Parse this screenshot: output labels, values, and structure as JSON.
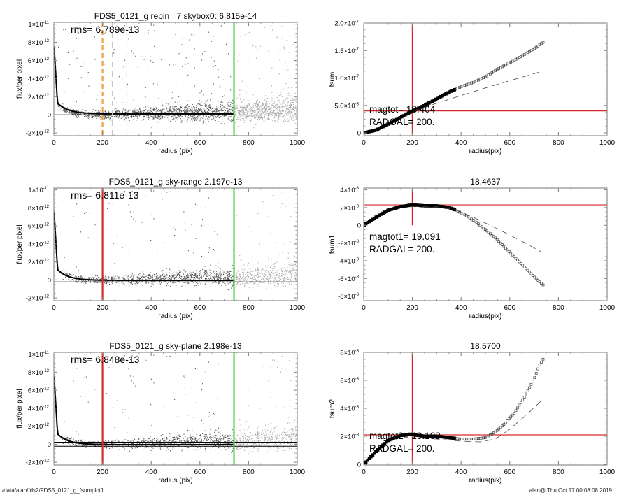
{
  "footer": {
    "path": "/data/alan/fds2/FDS5_0121_g_fsumplot1",
    "stamp": "alan@  Thu Oct 17 00:08:08 2019"
  },
  "colors": {
    "red": "#d62a2a",
    "green": "#4fd24f",
    "orange": "#f0a040",
    "dark_points": "#555555",
    "light_points": "#a8a8a8"
  },
  "chart_data": [
    {
      "id": "profile0",
      "type": "scatter",
      "title": "FDS5_0121_g rebin= 7    skybox0:  6.815e-14",
      "annotation": "rms= 6.789e-13",
      "xlabel": "radius (pix)",
      "ylabel": "flux/per pixel",
      "xlim": [
        0,
        1000
      ],
      "ylim": [
        -2.3e-12,
        1.02e-11
      ],
      "xticks": [
        0,
        200,
        400,
        600,
        800,
        1000
      ],
      "xticklabels": [
        "0",
        "200",
        "400",
        "600",
        "800",
        "1000"
      ],
      "yticks": [
        -2e-12,
        0,
        2e-12,
        4e-12,
        6e-12,
        8e-12,
        1e-11
      ],
      "yticklabels": [
        [
          "-2×10",
          "-12"
        ],
        [
          "0",
          ""
        ],
        [
          "2×10",
          "-12"
        ],
        [
          "4×10",
          "-12"
        ],
        [
          "6×10",
          "-12"
        ],
        [
          "8×10",
          "-12"
        ],
        [
          "1×10",
          "-11"
        ]
      ],
      "vlines": [
        {
          "x": 200,
          "color": "orange",
          "style": "dashed"
        },
        {
          "x": 240,
          "color": "lightgray",
          "style": "dashed"
        },
        {
          "x": 300,
          "color": "lightgray",
          "style": "dashed"
        },
        {
          "x": 740,
          "color": "green",
          "style": "solid"
        }
      ],
      "hlines": [
        {
          "y": 0,
          "color": "black"
        }
      ],
      "profile_end": 740,
      "skyband": [
        0,
        0
      ]
    },
    {
      "id": "fsum0",
      "type": "line",
      "title": "",
      "xlabel": "radius(pix)",
      "ylabel": "fsum",
      "xlim": [
        0,
        1000
      ],
      "ylim": [
        -5e-09,
        2e-07
      ],
      "xticks": [
        0,
        200,
        400,
        600,
        800,
        1000
      ],
      "xticklabels": [
        "0",
        "200",
        "400",
        "600",
        "800",
        "1000"
      ],
      "yticks": [
        0,
        5e-08,
        1e-07,
        1.5e-07,
        2e-07
      ],
      "yticklabels": [
        [
          "0",
          ""
        ],
        [
          "5.0×10",
          "-8"
        ],
        [
          "1.0×10",
          "-7"
        ],
        [
          "1.5×10",
          "-7"
        ],
        [
          "2.0×10",
          "-7"
        ]
      ],
      "annotations": [
        "magtot=  18.404",
        "RADGAL=   200."
      ],
      "vline": 200,
      "hline": 4e-08,
      "series": [
        {
          "name": "fsum",
          "style": "squares",
          "x": [
            0,
            50,
            100,
            150,
            200,
            250,
            300,
            350,
            400,
            450,
            500,
            550,
            600,
            650,
            700,
            740
          ],
          "y": [
            0,
            5e-09,
            1.6e-08,
            2.8e-08,
            4e-08,
            5e-08,
            6.2e-08,
            7.4e-08,
            8.4e-08,
            9.2e-08,
            1.02e-07,
            1.16e-07,
            1.28e-07,
            1.4e-07,
            1.53e-07,
            1.66e-07
          ]
        },
        {
          "name": "model",
          "style": "dashed",
          "x": [
            200,
            300,
            400,
            500,
            600,
            740
          ],
          "y": [
            4e-08,
            5.4e-08,
            6.8e-08,
            8.2e-08,
            9.5e-08,
            1.13e-07
          ]
        }
      ]
    },
    {
      "id": "profile1",
      "type": "scatter",
      "title": "FDS5_0121_g sky-range  2.197e-13",
      "annotation": "rms= 6.811e-13",
      "xlabel": "radius (pix)",
      "ylabel": "flux/per pixel",
      "xlim": [
        0,
        1000
      ],
      "ylim": [
        -2.3e-12,
        1.02e-11
      ],
      "xticks": [
        0,
        200,
        400,
        600,
        800,
        1000
      ],
      "xticklabels": [
        "0",
        "200",
        "400",
        "600",
        "800",
        "1000"
      ],
      "yticks": [
        -2e-12,
        0,
        2e-12,
        4e-12,
        6e-12,
        8e-12,
        1e-11
      ],
      "yticklabels": [
        [
          "-2×10",
          "-12"
        ],
        [
          "0",
          ""
        ],
        [
          "2×10",
          "-12"
        ],
        [
          "4×10",
          "-12"
        ],
        [
          "6×10",
          "-12"
        ],
        [
          "8×10",
          "-12"
        ],
        [
          "1×10",
          "-11"
        ]
      ],
      "vlines": [
        {
          "x": 200,
          "color": "red",
          "style": "solid"
        },
        {
          "x": 740,
          "color": "green",
          "style": "solid"
        }
      ],
      "hlines": [
        {
          "y": 2.2e-13,
          "color": "black"
        },
        {
          "y": -2.2e-13,
          "color": "black"
        }
      ],
      "profile_end": 740,
      "skyband": [
        -2.2e-13,
        2.2e-13
      ]
    },
    {
      "id": "fsum1",
      "type": "line",
      "title": "18.4637",
      "xlabel": "radius(pix)",
      "ylabel": "fsum1",
      "xlim": [
        0,
        1000
      ],
      "ylim": [
        -8.5e-08,
        4.2e-08
      ],
      "xticks": [
        0,
        200,
        400,
        600,
        800,
        1000
      ],
      "xticklabels": [
        "0",
        "200",
        "400",
        "600",
        "800",
        "1000"
      ],
      "yticks": [
        -8e-08,
        -6e-08,
        -4e-08,
        -2e-08,
        0,
        2e-08,
        4e-08
      ],
      "yticklabels": [
        [
          "-8×10",
          "-8"
        ],
        [
          "-6×10",
          "-8"
        ],
        [
          "-4×10",
          "-8"
        ],
        [
          "-2×10",
          "-8"
        ],
        [
          "0",
          ""
        ],
        [
          "2×10",
          "-8"
        ],
        [
          "4×10",
          "-8"
        ]
      ],
      "annotations": [
        "magtot1=  19.091",
        "RADGAL=   200."
      ],
      "vline": 200,
      "hline": 2.3e-08,
      "vline_range": [
        0,
        4e-08
      ],
      "series": [
        {
          "name": "fsum1",
          "style": "squares",
          "x": [
            0,
            50,
            100,
            150,
            200,
            250,
            300,
            350,
            380,
            420,
            460,
            500,
            540,
            580,
            620,
            660,
            700,
            740
          ],
          "y": [
            0,
            9e-09,
            1.7e-08,
            2.1e-08,
            2.3e-08,
            2.2e-08,
            2.2e-08,
            2e-08,
            1.7e-08,
            1.1e-08,
            4e-09,
            -5e-09,
            -1.4e-08,
            -2.5e-08,
            -3.6e-08,
            -4.7e-08,
            -5.8e-08,
            -6.8e-08
          ]
        },
        {
          "name": "model",
          "style": "dashed",
          "x": [
            200,
            300,
            380,
            450,
            550,
            650,
            730
          ],
          "y": [
            2.1e-08,
            2.1e-08,
            1.7e-08,
            9e-09,
            -4e-09,
            -1.8e-08,
            -3e-08
          ]
        }
      ]
    },
    {
      "id": "profile2",
      "type": "scatter",
      "title": "FDS5_0121_g sky-plane  2.198e-13",
      "annotation": "rms= 6.848e-13",
      "xlabel": "radius (pix)",
      "ylabel": "flux/per pixel",
      "xlim": [
        0,
        1000
      ],
      "ylim": [
        -2.3e-12,
        1.02e-11
      ],
      "xticks": [
        0,
        200,
        400,
        600,
        800,
        1000
      ],
      "xticklabels": [
        "0",
        "200",
        "400",
        "600",
        "800",
        "1000"
      ],
      "yticks": [
        -2e-12,
        0,
        2e-12,
        4e-12,
        6e-12,
        8e-12,
        1e-11
      ],
      "yticklabels": [
        [
          "-2×10",
          "-12"
        ],
        [
          "0",
          ""
        ],
        [
          "2×10",
          "-12"
        ],
        [
          "4×10",
          "-12"
        ],
        [
          "6×10",
          "-12"
        ],
        [
          "8×10",
          "-12"
        ],
        [
          "1×10",
          "-11"
        ]
      ],
      "vlines": [
        {
          "x": 200,
          "color": "red",
          "style": "solid"
        },
        {
          "x": 740,
          "color": "green",
          "style": "solid"
        }
      ],
      "hlines": [
        {
          "y": 2.2e-13,
          "color": "black"
        },
        {
          "y": -2.2e-13,
          "color": "black"
        }
      ],
      "profile_end": 740,
      "skyband": [
        -2.2e-13,
        2.2e-13
      ]
    },
    {
      "id": "fsum2",
      "type": "line",
      "title": "18.5700",
      "xlabel": "radius(pix)",
      "ylabel": "fsum2",
      "xlim": [
        0,
        1000
      ],
      "ylim": [
        -5e-10,
        8e-08
      ],
      "xticks": [
        0,
        200,
        400,
        600,
        800,
        1000
      ],
      "xticklabels": [
        "0",
        "200",
        "400",
        "600",
        "800",
        "1000"
      ],
      "yticks": [
        0,
        2e-08,
        4e-08,
        6e-08,
        8e-08
      ],
      "yticklabels": [
        [
          "0",
          ""
        ],
        [
          "2×10",
          "-8"
        ],
        [
          "4×10",
          "-8"
        ],
        [
          "6×10",
          "-8"
        ],
        [
          "8×10",
          "-8"
        ]
      ],
      "annotations": [
        "magtot2=  19.183",
        "RADGAL=   200."
      ],
      "vline": 200,
      "hline": 2.1e-08,
      "series": [
        {
          "name": "fsum2",
          "style": "squares",
          "x": [
            0,
            50,
            100,
            150,
            190,
            250,
            300,
            350,
            400,
            450,
            500,
            540,
            580,
            620,
            660,
            700,
            720,
            740
          ],
          "y": [
            0,
            9e-09,
            1.7e-08,
            2.05e-08,
            2.15e-08,
            2e-08,
            2e-08,
            1.9e-08,
            1.8e-08,
            1.8e-08,
            1.9e-08,
            2.3e-08,
            2.9e-08,
            3.7e-08,
            4.8e-08,
            6.1e-08,
            7e-08,
            7.6e-08
          ]
        },
        {
          "name": "model",
          "style": "dashed",
          "x": [
            200,
            300,
            400,
            480,
            540,
            600,
            660,
            740
          ],
          "y": [
            1.9e-08,
            1.8e-08,
            1.65e-08,
            1.6e-08,
            1.8e-08,
            2.5e-08,
            3.4e-08,
            4.7e-08
          ]
        }
      ]
    }
  ]
}
